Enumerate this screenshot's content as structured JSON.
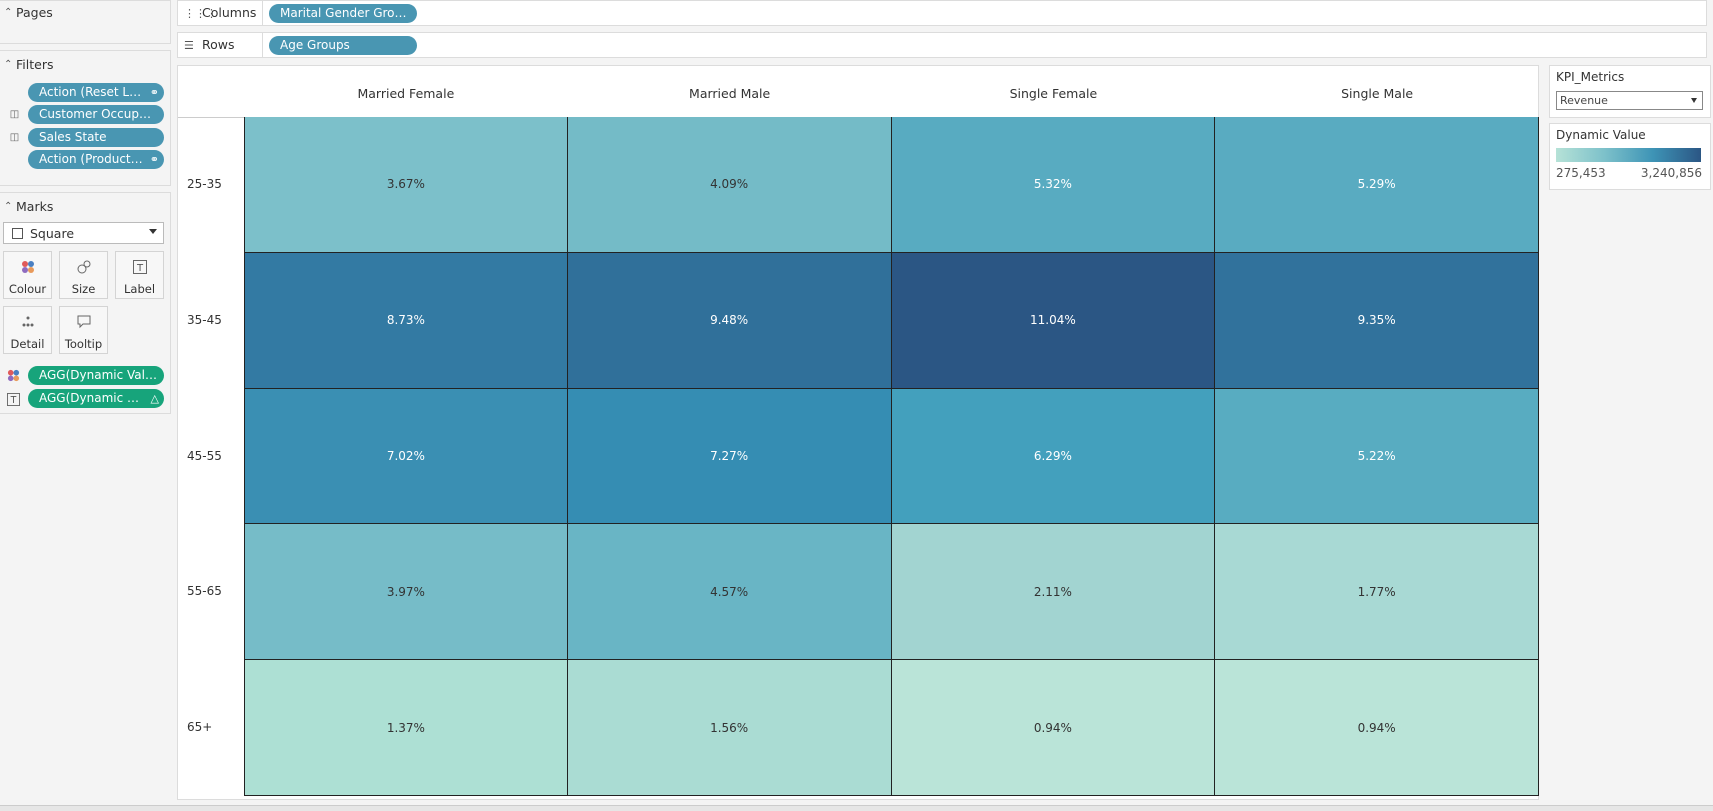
{
  "pages_card": {
    "title": "Pages"
  },
  "filters_card": {
    "title": "Filters",
    "items": [
      "Action (Reset Lab...",
      "Customer Occupation",
      "Sales State",
      "Action (Product N..."
    ]
  },
  "marks_card": {
    "title": "Marks",
    "mark_type": "Square",
    "buttons": [
      "Colour",
      "Size",
      "Label",
      "Detail",
      "Tooltip"
    ],
    "fields": [
      "AGG(Dynamic Value)",
      "AGG(Dynamic Val..."
    ]
  },
  "columns_shelf": {
    "label": "Columns",
    "pill": "Marital Gender Groups"
  },
  "rows_shelf": {
    "label": "Rows",
    "pill": "Age Groups"
  },
  "kpi_param": {
    "title": "KPI_Metrics",
    "value": "Revenue"
  },
  "color_legend": {
    "title": "Dynamic Value",
    "min": "275,453",
    "max": "3,240,856"
  },
  "colors": {
    "pill_blue": "#4996b2",
    "pill_green": "#17a47b"
  },
  "table": {
    "columns": [
      "Married Female",
      "Married Male",
      "Single Female",
      "Single Male"
    ],
    "rows": [
      {
        "label": "25-35",
        "cells": [
          {
            "text": "3.67%",
            "color": "#7cc0ca"
          },
          {
            "text": "4.09%",
            "color": "#74bbc7"
          },
          {
            "text": "5.32%",
            "color": "#58abc1"
          },
          {
            "text": "5.29%",
            "color": "#59abc1"
          }
        ]
      },
      {
        "label": "35-45",
        "cells": [
          {
            "text": "8.73%",
            "color": "#337aa3"
          },
          {
            "text": "9.48%",
            "color": "#30709a"
          },
          {
            "text": "11.04%",
            "color": "#2b5684"
          },
          {
            "text": "9.35%",
            "color": "#31729c"
          }
        ]
      },
      {
        "label": "45-55",
        "cells": [
          {
            "text": "7.02%",
            "color": "#3a8fb3"
          },
          {
            "text": "7.27%",
            "color": "#358db3"
          },
          {
            "text": "6.29%",
            "color": "#43a0bd"
          },
          {
            "text": "5.22%",
            "color": "#58acc1"
          }
        ]
      },
      {
        "label": "55-65",
        "cells": [
          {
            "text": "3.97%",
            "color": "#76bcc8"
          },
          {
            "text": "4.57%",
            "color": "#69b5c5"
          },
          {
            "text": "2.11%",
            "color": "#a2d4d1"
          },
          {
            "text": "1.77%",
            "color": "#a8d9d4"
          }
        ]
      },
      {
        "label": "65+",
        "cells": [
          {
            "text": "1.37%",
            "color": "#ade0d4"
          },
          {
            "text": "1.56%",
            "color": "#aadcd3"
          },
          {
            "text": "0.94%",
            "color": "#bae4d8"
          },
          {
            "text": "0.94%",
            "color": "#bae4d8"
          }
        ]
      }
    ]
  }
}
